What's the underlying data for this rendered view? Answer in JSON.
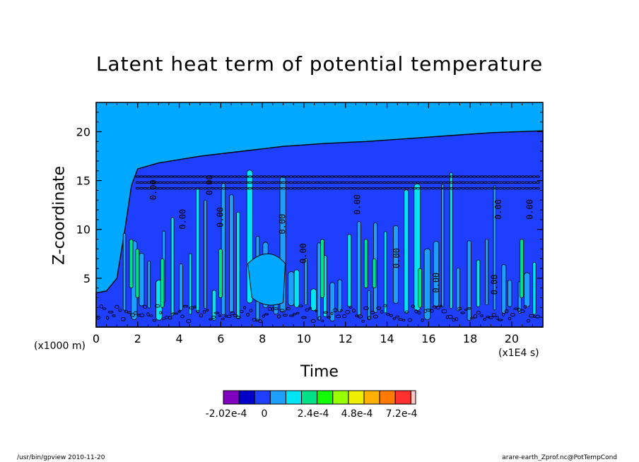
{
  "chart_data": {
    "type": "heatmap",
    "title": "Latent heat term of potential temperature",
    "xlabel": "Time",
    "ylabel": "Z-coordinate",
    "x_unit": "(x1E4 s)",
    "y_unit": "(x1000 m)",
    "xlim": [
      0,
      21.5
    ],
    "ylim": [
      0,
      23
    ],
    "x_ticks": [
      "0",
      "2",
      "4",
      "6",
      "8",
      "10",
      "12",
      "14",
      "16",
      "18",
      "20"
    ],
    "y_ticks": [
      "5",
      "10",
      "15",
      "20"
    ],
    "contour_label": "0.00",
    "colorbar": {
      "colors": [
        "#7f00bf",
        "#0000c8",
        "#1f3fff",
        "#1e9fff",
        "#00e5f5",
        "#00e187",
        "#11ff00",
        "#98ff00",
        "#eeee00",
        "#ffb000",
        "#ff7a00",
        "#ff3030",
        "#ffc8c8"
      ],
      "tick_labels": [
        "-2.02e-4",
        "0",
        "2.4e-4",
        "4.8e-4",
        "7.2e-4"
      ]
    },
    "colors": {
      "background_field": "#00a8ff",
      "low_level_field": "#1f3fff",
      "contour_line": "#000000"
    }
  },
  "footer": {
    "left": "/usr/bin/gpview  2010-11-20",
    "right": "arare-earth_Zprof.nc@PotTempCond"
  }
}
